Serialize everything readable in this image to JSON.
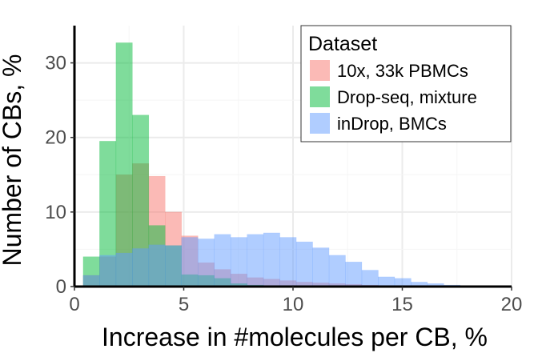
{
  "chart_data": {
    "type": "bar",
    "subtype": "overlapping-histogram",
    "xlabel": "Increase in #molecules per CB, %",
    "ylabel": "Number of CBs, %",
    "xlim": [
      0,
      20
    ],
    "ylim": [
      0,
      35
    ],
    "x_ticks": [
      "0",
      "5",
      "10",
      "15",
      "20"
    ],
    "y_ticks": [
      "0",
      "10",
      "20",
      "30"
    ],
    "x_tick_values": [
      0,
      5,
      10,
      15,
      20
    ],
    "y_tick_values": [
      0,
      10,
      20,
      30
    ],
    "grid": true,
    "bin_width": 0.75,
    "legend_title": "Dataset",
    "legend_position": "top-right",
    "series": [
      {
        "name": "10x, 33k PBMCs",
        "color": "#F8766D",
        "bin_start": [
          0.4,
          1.15,
          1.9,
          2.65,
          3.4,
          4.15,
          4.9,
          5.65,
          6.4,
          7.15,
          7.9,
          8.65,
          9.4,
          10.15,
          10.9,
          11.65,
          12.4,
          13.15,
          13.9
        ],
        "values": [
          1.5,
          4.0,
          15.0,
          16.5,
          14.8,
          10.0,
          6.8,
          3.2,
          2.3,
          1.7,
          1.2,
          1.0,
          0.8,
          0.6,
          0.5,
          0.4,
          0.3,
          0.2,
          0.1
        ]
      },
      {
        "name": "Drop-seq, mixture",
        "color": "#00BA38",
        "bin_start": [
          0.4,
          1.15,
          1.9,
          2.65,
          3.4,
          4.15,
          4.9,
          5.65,
          6.4,
          7.15,
          7.9,
          8.65
        ],
        "values": [
          4.0,
          19.5,
          32.7,
          23.0,
          8.2,
          5.5,
          1.6,
          1.5,
          1.1,
          0.4,
          0.2,
          0.1
        ]
      },
      {
        "name": "inDrop, BMCs",
        "color": "#619CFF",
        "bin_start": [
          0.4,
          1.15,
          1.9,
          2.65,
          3.4,
          4.15,
          4.9,
          5.65,
          6.4,
          7.15,
          7.9,
          8.65,
          9.4,
          10.15,
          10.9,
          11.65,
          12.4,
          13.15,
          13.9,
          14.65,
          15.4,
          16.15,
          16.9,
          17.65
        ],
        "values": [
          1.5,
          4.2,
          4.5,
          5.1,
          5.6,
          5.5,
          6.6,
          6.4,
          7.0,
          6.6,
          7.0,
          7.2,
          6.6,
          6.0,
          5.2,
          4.2,
          3.3,
          2.2,
          1.3,
          1.1,
          0.6,
          0.4,
          0.2,
          0.1
        ]
      }
    ]
  }
}
